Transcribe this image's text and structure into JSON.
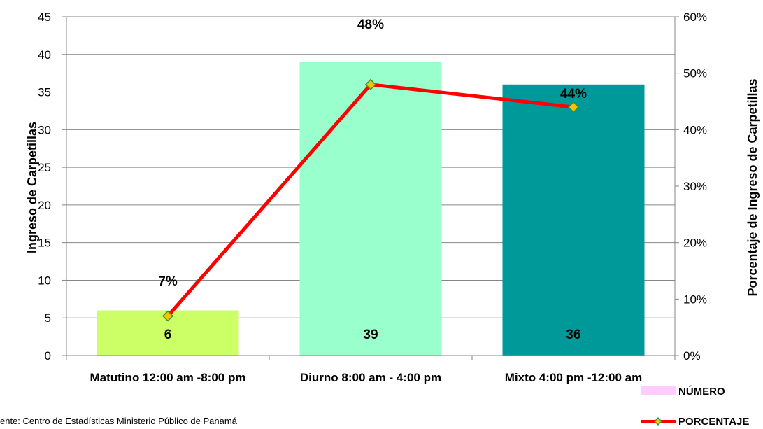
{
  "chart_data": {
    "type": "bar",
    "categories": [
      "Matutino 12:00 am -8:00 pm",
      "Diurno 8:00 am - 4:00 pm",
      "Mixto 4:00 pm -12:00 am"
    ],
    "series": [
      {
        "name": "NÚMERO",
        "type": "bar",
        "axis": "left",
        "values": [
          6,
          39,
          36
        ],
        "labels": [
          "6",
          "39",
          "36"
        ],
        "colors": [
          "#ccff66",
          "#99ffcc",
          "#009999"
        ],
        "legend_color": "#ffccff"
      },
      {
        "name": "PORCENTAJE",
        "type": "line",
        "axis": "right",
        "values": [
          0.07,
          0.48,
          0.44
        ],
        "labels": [
          "7%",
          "48%",
          "44%"
        ],
        "line_color": "#ff0000",
        "marker_color": "#ffc000",
        "marker_edge": "#339933"
      }
    ],
    "ylabel": "Ingreso de Carpetillas",
    "y2label": "Porcentaje de Ingreso de Carpetillas",
    "ylim": [
      0,
      45
    ],
    "yticks": [
      "0",
      "5",
      "10",
      "15",
      "20",
      "25",
      "30",
      "35",
      "40",
      "45"
    ],
    "y2lim": [
      0,
      0.6
    ],
    "y2ticks": [
      "0%",
      "10%",
      "20%",
      "30%",
      "40%",
      "50%",
      "60%"
    ],
    "grid": true,
    "legend_position": "bottom-right"
  },
  "footer": {
    "source": "ente: Centro de Estadísticas Ministerio Público de Panamá"
  }
}
